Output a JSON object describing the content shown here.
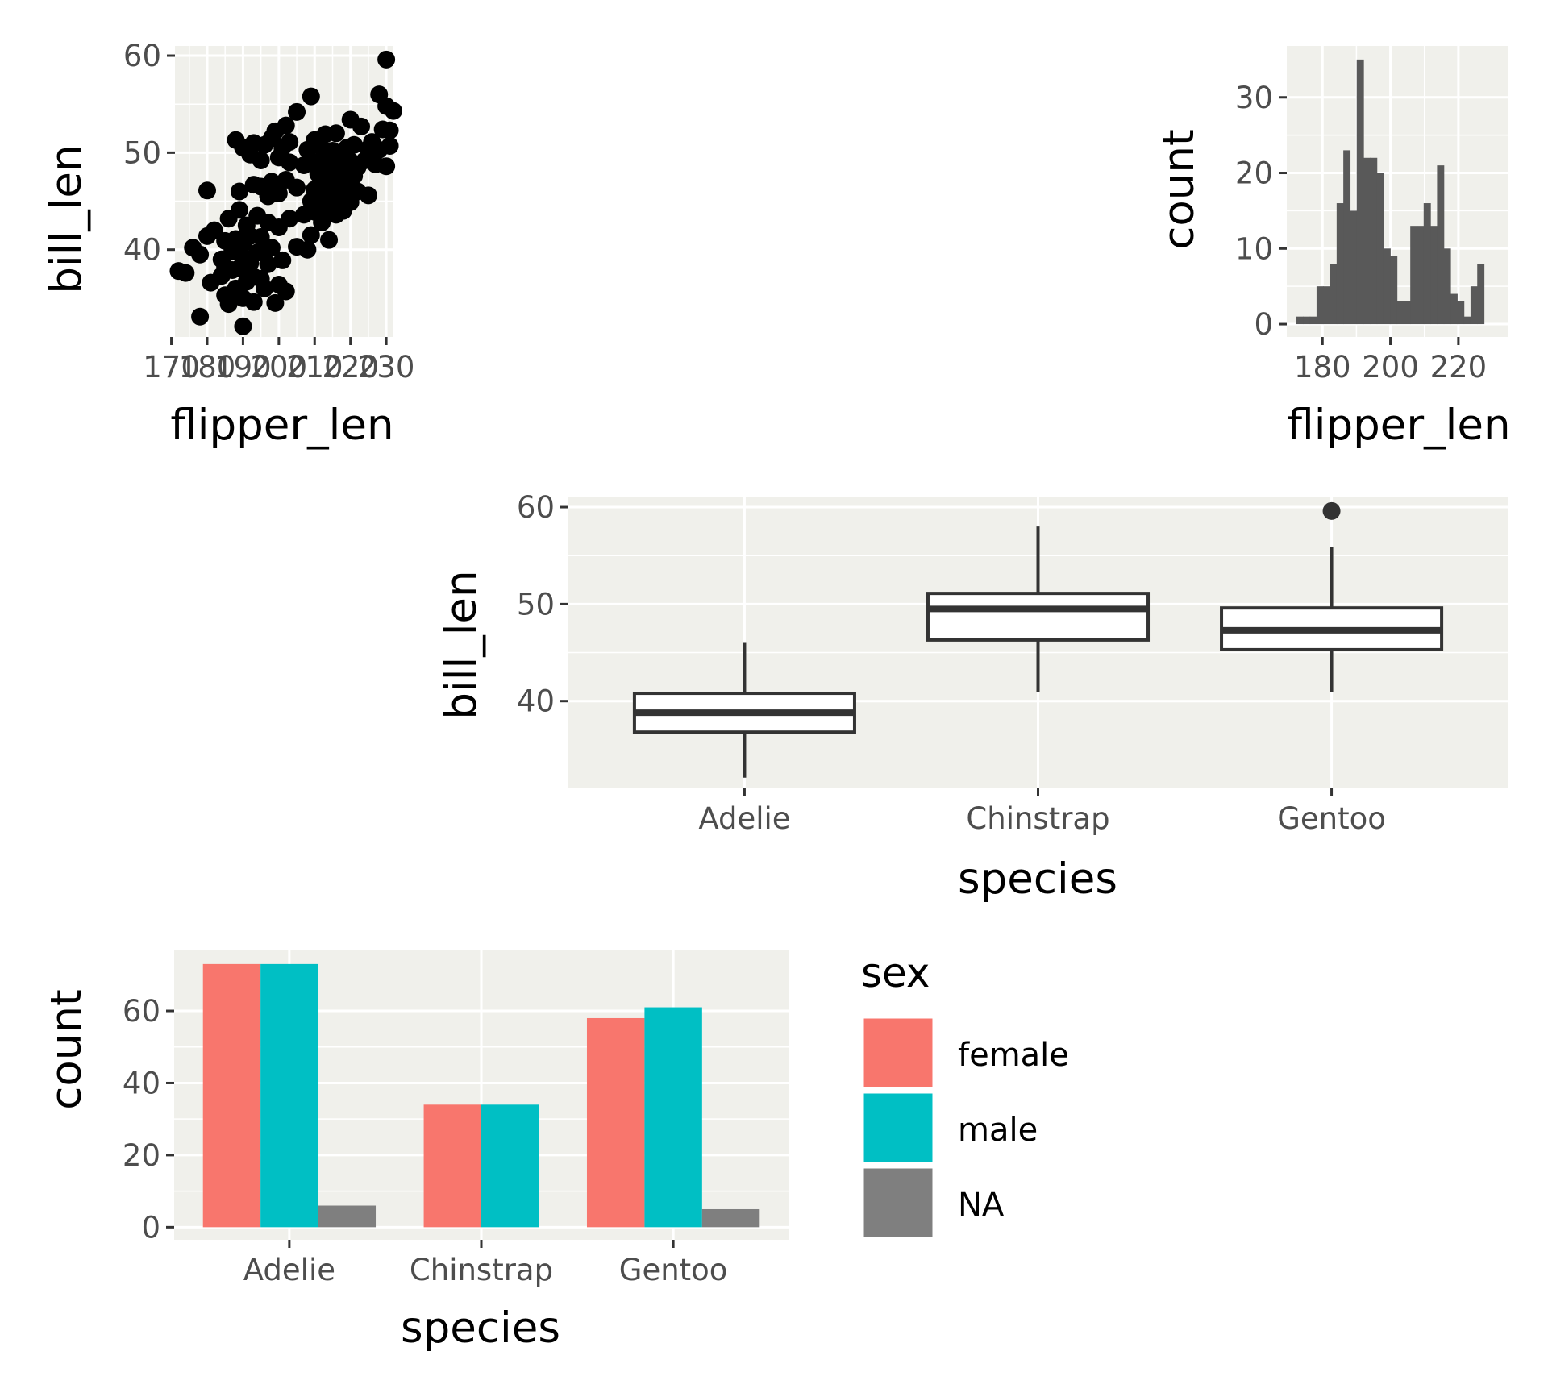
{
  "colors": {
    "panel": "#f0f0eb",
    "grid": "#ffffff",
    "point": "#000000",
    "hist": "#595959",
    "box": "#333333",
    "female": "#f8766d",
    "male": "#00bfc4",
    "na": "#7f7f7f"
  },
  "chart_data": [
    {
      "id": "scatter",
      "type": "scatter",
      "xlabel": "flipper_len",
      "ylabel": "bill_len",
      "xlim": [
        171,
        232
      ],
      "ylim": [
        31,
        61
      ],
      "xticks": [
        170,
        180,
        190,
        200,
        210,
        220,
        230
      ],
      "xtick_labels": [
        "170",
        "180",
        "190",
        "200",
        "210",
        "220",
        "230"
      ],
      "yticks": [
        40,
        50,
        60
      ],
      "ytick_labels": [
        "40",
        "50",
        "60"
      ],
      "points": [
        [
          172,
          37.8
        ],
        [
          174,
          37.6
        ],
        [
          176,
          40.2
        ],
        [
          178,
          39.5
        ],
        [
          178,
          33.1
        ],
        [
          180,
          46.1
        ],
        [
          180,
          41.4
        ],
        [
          181,
          36.6
        ],
        [
          182,
          42.0
        ],
        [
          184,
          39.0
        ],
        [
          184,
          37.3
        ],
        [
          185,
          38.2
        ],
        [
          185,
          40.9
        ],
        [
          185,
          35.3
        ],
        [
          186,
          43.2
        ],
        [
          186,
          34.4
        ],
        [
          187,
          39.8
        ],
        [
          187,
          37.9
        ],
        [
          188,
          41.1
        ],
        [
          188,
          36.0
        ],
        [
          188,
          51.3
        ],
        [
          189,
          38.1
        ],
        [
          189,
          46.0
        ],
        [
          189,
          44.1
        ],
        [
          190,
          40.6
        ],
        [
          190,
          35.0
        ],
        [
          190,
          32.1
        ],
        [
          190,
          50.5
        ],
        [
          190,
          39.2
        ],
        [
          191,
          42.5
        ],
        [
          191,
          36.7
        ],
        [
          192,
          49.8
        ],
        [
          192,
          38.6
        ],
        [
          192,
          41.4
        ],
        [
          193,
          46.7
        ],
        [
          193,
          37.2
        ],
        [
          193,
          51.0
        ],
        [
          193,
          34.6
        ],
        [
          194,
          43.5
        ],
        [
          194,
          39.7
        ],
        [
          195,
          49.2
        ],
        [
          195,
          37.0
        ],
        [
          195,
          46.5
        ],
        [
          195,
          41.3
        ],
        [
          196,
          50.8
        ],
        [
          196,
          39.8
        ],
        [
          196,
          36.0
        ],
        [
          197,
          45.5
        ],
        [
          197,
          42.8
        ],
        [
          197,
          38.5
        ],
        [
          198,
          51.5
        ],
        [
          198,
          47.0
        ],
        [
          198,
          40.2
        ],
        [
          199,
          52.2
        ],
        [
          199,
          34.5
        ],
        [
          200,
          49.5
        ],
        [
          200,
          45.8
        ],
        [
          200,
          36.4
        ],
        [
          200,
          42.3
        ],
        [
          201,
          50.5
        ],
        [
          201,
          38.9
        ],
        [
          202,
          47.2
        ],
        [
          202,
          52.8
        ],
        [
          202,
          35.7
        ],
        [
          203,
          49.0
        ],
        [
          203,
          43.2
        ],
        [
          203,
          51.1
        ],
        [
          205,
          54.2
        ],
        [
          205,
          46.4
        ],
        [
          205,
          40.3
        ],
        [
          207,
          48.7
        ],
        [
          207,
          43.6
        ],
        [
          208,
          50.3
        ],
        [
          208,
          40.0
        ],
        [
          209,
          45.0
        ],
        [
          209,
          55.8
        ],
        [
          209,
          41.5
        ],
        [
          210,
          46.2
        ],
        [
          210,
          48.9
        ],
        [
          210,
          51.3
        ],
        [
          210,
          43.9
        ],
        [
          211,
          44.5
        ],
        [
          211,
          47.8
        ],
        [
          211,
          50.8
        ],
        [
          212,
          45.6
        ],
        [
          212,
          49.3
        ],
        [
          212,
          42.8
        ],
        [
          213,
          47.2
        ],
        [
          213,
          51.9
        ],
        [
          213,
          44.1
        ],
        [
          214,
          46.9
        ],
        [
          214,
          49.4
        ],
        [
          214,
          41.0
        ],
        [
          215,
          45.2
        ],
        [
          215,
          48.6
        ],
        [
          215,
          50.2
        ],
        [
          216,
          43.6
        ],
        [
          216,
          47.5
        ],
        [
          216,
          52.0
        ],
        [
          217,
          46.1
        ],
        [
          217,
          49.9
        ],
        [
          218,
          45.3
        ],
        [
          218,
          48.2
        ],
        [
          218,
          44.0
        ],
        [
          219,
          50.5
        ],
        [
          219,
          46.8
        ],
        [
          220,
          49.1
        ],
        [
          220,
          53.4
        ],
        [
          220,
          44.9
        ],
        [
          221,
          47.6
        ],
        [
          221,
          50.8
        ],
        [
          222,
          48.5
        ],
        [
          222,
          46.0
        ],
        [
          223,
          52.7
        ],
        [
          224,
          49.2
        ],
        [
          225,
          50.4
        ],
        [
          225,
          45.6
        ],
        [
          226,
          51.1
        ],
        [
          227,
          48.8
        ],
        [
          228,
          56.0
        ],
        [
          228,
          50.3
        ],
        [
          229,
          52.4
        ],
        [
          230,
          59.6
        ],
        [
          230,
          48.6
        ],
        [
          230,
          54.8
        ],
        [
          231,
          50.7
        ],
        [
          231,
          52.3
        ],
        [
          232,
          54.3
        ]
      ]
    },
    {
      "id": "histogram",
      "type": "bar",
      "xlabel": "flipper_len",
      "ylabel": "count",
      "xlim": [
        169.5,
        234.5
      ],
      "ylim": [
        -1.7,
        36.8
      ],
      "xticks": [
        180,
        200,
        220
      ],
      "xtick_labels": [
        "180",
        "200",
        "220"
      ],
      "yticks": [
        0,
        10,
        20,
        30
      ],
      "ytick_labels": [
        "0",
        "10",
        "20",
        "30"
      ],
      "bin_start": 172.35,
      "bin_width": 1.97,
      "counts": [
        1,
        1,
        1,
        5,
        5,
        8,
        16,
        23,
        15,
        35,
        22,
        22,
        20,
        10,
        9,
        3,
        3,
        13,
        13,
        16,
        13,
        21,
        10,
        4,
        3,
        1,
        5,
        8
      ]
    },
    {
      "id": "boxplot",
      "type": "box",
      "xlabel": "species",
      "ylabel": "bill_len",
      "ylim": [
        31,
        61
      ],
      "yticks": [
        40,
        50,
        60
      ],
      "ytick_labels": [
        "40",
        "50",
        "60"
      ],
      "categories": [
        "Adelie",
        "Chinstrap",
        "Gentoo"
      ],
      "boxes": [
        {
          "min": 32.1,
          "q1": 36.8,
          "median": 38.8,
          "q3": 40.8,
          "max": 46.0,
          "outliers": []
        },
        {
          "min": 40.9,
          "q1": 46.3,
          "median": 49.5,
          "q3": 51.1,
          "max": 58.0,
          "outliers": []
        },
        {
          "min": 40.9,
          "q1": 45.3,
          "median": 47.3,
          "q3": 49.6,
          "max": 55.9,
          "outliers": [
            59.6
          ]
        }
      ]
    },
    {
      "id": "grouped-bar",
      "type": "bar",
      "xlabel": "species",
      "ylabel": "count",
      "ylim": [
        -3.5,
        77
      ],
      "yticks": [
        0,
        20,
        40,
        60
      ],
      "ytick_labels": [
        "0",
        "20",
        "40",
        "60"
      ],
      "categories": [
        "Adelie",
        "Chinstrap",
        "Gentoo"
      ],
      "series": [
        {
          "name": "female",
          "values": [
            73,
            34,
            58
          ]
        },
        {
          "name": "male",
          "values": [
            73,
            34,
            61
          ]
        },
        {
          "name": "NA",
          "values": [
            6,
            0,
            5
          ]
        }
      ],
      "legend": {
        "title": "sex",
        "position": "right",
        "items": [
          "female",
          "male",
          "NA"
        ]
      }
    }
  ]
}
